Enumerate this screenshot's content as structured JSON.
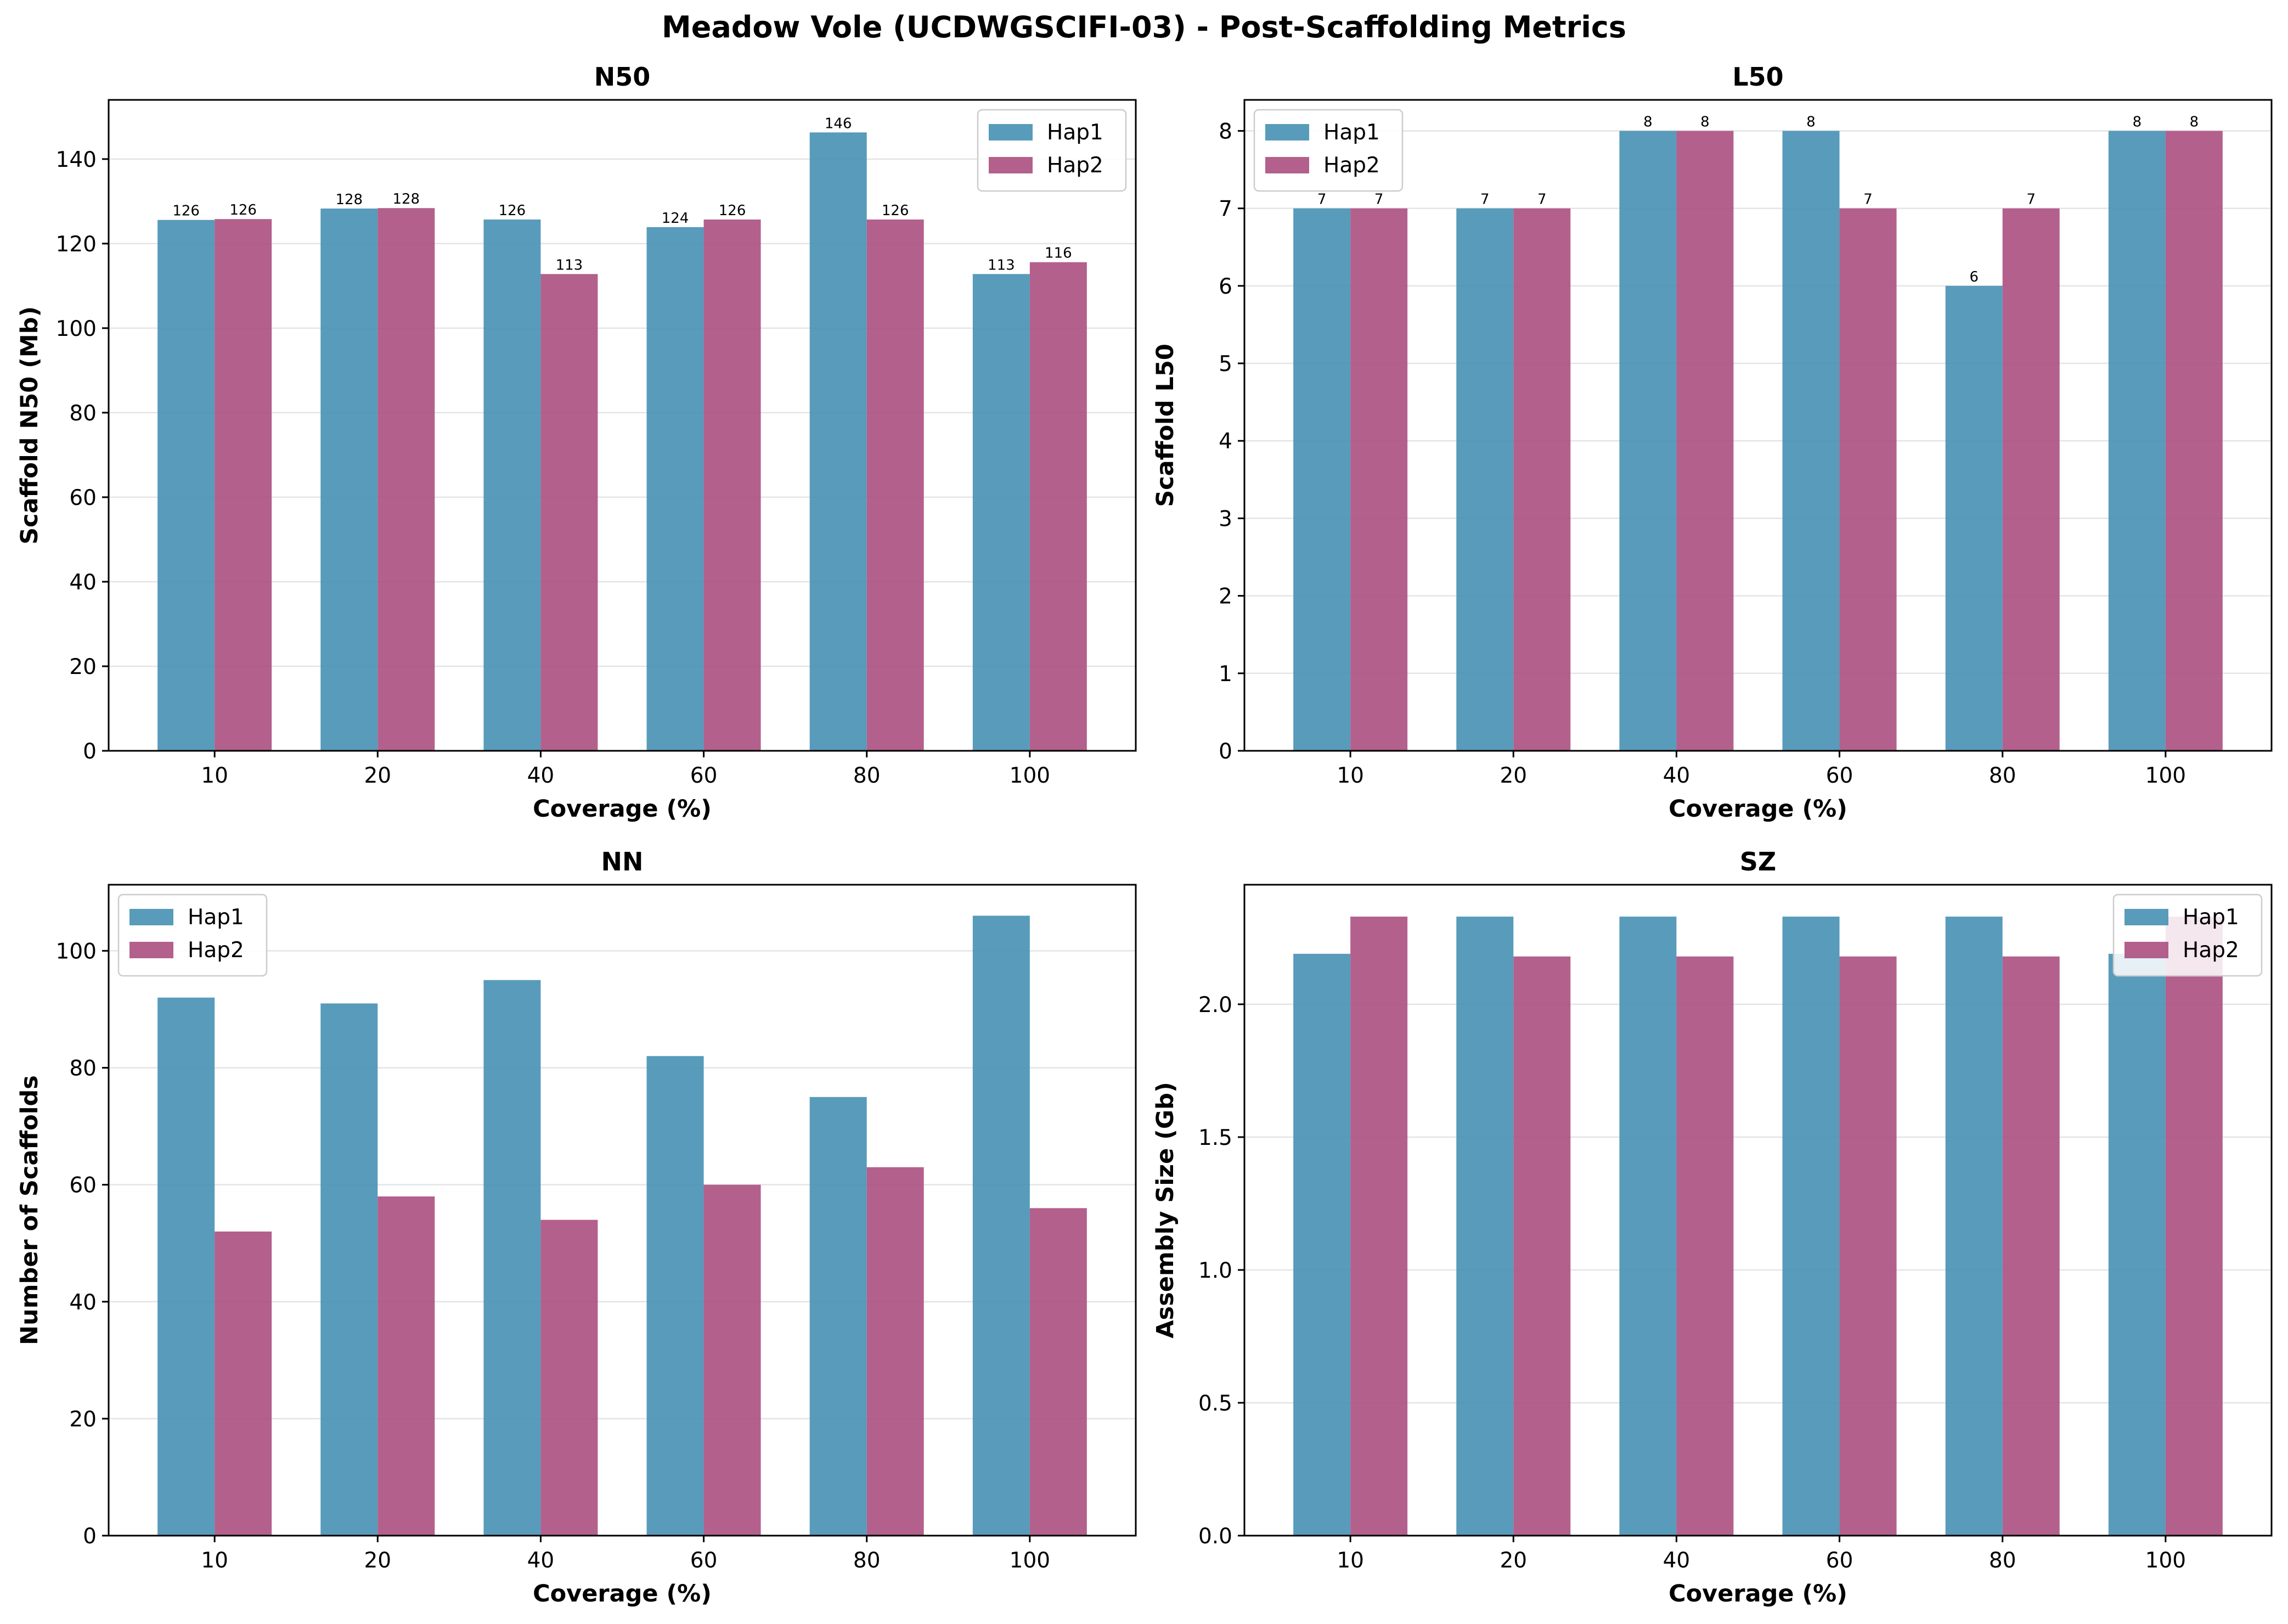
{
  "suptitle": "Meadow Vole (UCDWGSCIFI-03) - Post-Scaffolding Metrics",
  "colors": {
    "hap1": "#4a93b5",
    "hap2": "#ad5283"
  },
  "chart_data": [
    {
      "type": "bar",
      "title": "N50",
      "xlabel": "Coverage (%)",
      "ylabel": "Scaffold N50 (Mb)",
      "categories": [
        "10",
        "20",
        "40",
        "60",
        "80",
        "100"
      ],
      "ylim": [
        0,
        154
      ],
      "yticks": [
        "0",
        "20",
        "40",
        "60",
        "80",
        "100",
        "120",
        "140"
      ],
      "ytick_values": [
        0,
        20,
        40,
        60,
        80,
        100,
        120,
        140
      ],
      "legend": "top-right",
      "grid": "y",
      "series": [
        {
          "name": "Hap1",
          "values": [
            125.6,
            128.3,
            125.7,
            123.9,
            146.3,
            112.8
          ],
          "labels": [
            "126",
            "128",
            "126",
            "124",
            "146",
            "113"
          ]
        },
        {
          "name": "Hap2",
          "values": [
            125.8,
            128.4,
            112.8,
            125.7,
            125.7,
            115.6
          ],
          "labels": [
            "126",
            "128",
            "113",
            "126",
            "126",
            "116"
          ]
        }
      ]
    },
    {
      "type": "bar",
      "title": "L50",
      "xlabel": "Coverage (%)",
      "ylabel": "Scaffold L50",
      "categories": [
        "10",
        "20",
        "40",
        "60",
        "80",
        "100"
      ],
      "ylim": [
        0,
        8.4
      ],
      "yticks": [
        "0",
        "1",
        "2",
        "3",
        "4",
        "5",
        "6",
        "7",
        "8"
      ],
      "ytick_values": [
        0,
        1,
        2,
        3,
        4,
        5,
        6,
        7,
        8
      ],
      "legend": "top-left",
      "grid": "y",
      "series": [
        {
          "name": "Hap1",
          "values": [
            7,
            7,
            8,
            8,
            6,
            8
          ],
          "labels": [
            "7",
            "7",
            "8",
            "8",
            "6",
            "8"
          ]
        },
        {
          "name": "Hap2",
          "values": [
            7,
            7,
            8,
            7,
            7,
            8
          ],
          "labels": [
            "7",
            "7",
            "8",
            "7",
            "7",
            "8"
          ]
        }
      ]
    },
    {
      "type": "bar",
      "title": "NN",
      "xlabel": "Coverage (%)",
      "ylabel": "Number of Scaffolds",
      "categories": [
        "10",
        "20",
        "40",
        "60",
        "80",
        "100"
      ],
      "ylim": [
        0,
        111.3
      ],
      "yticks": [
        "0",
        "20",
        "40",
        "60",
        "80",
        "100"
      ],
      "ytick_values": [
        0,
        20,
        40,
        60,
        80,
        100
      ],
      "legend": "top-left",
      "grid": "y",
      "series": [
        {
          "name": "Hap1",
          "values": [
            92,
            91,
            95,
            82,
            75,
            106
          ]
        },
        {
          "name": "Hap2",
          "values": [
            52,
            58,
            54,
            60,
            63,
            56
          ]
        }
      ]
    },
    {
      "type": "bar",
      "title": "SZ",
      "xlabel": "Coverage (%)",
      "ylabel": "Assembly Size (Gb)",
      "categories": [
        "10",
        "20",
        "40",
        "60",
        "80",
        "100"
      ],
      "ylim": [
        0,
        2.45
      ],
      "yticks": [
        "0.0",
        "0.5",
        "1.0",
        "1.5",
        "2.0"
      ],
      "ytick_values": [
        0,
        0.5,
        1.0,
        1.5,
        2.0
      ],
      "legend": "top-right",
      "grid": "y",
      "series": [
        {
          "name": "Hap1",
          "values": [
            2.19,
            2.33,
            2.33,
            2.33,
            2.33,
            2.19
          ]
        },
        {
          "name": "Hap2",
          "values": [
            2.33,
            2.18,
            2.18,
            2.18,
            2.18,
            2.33
          ]
        }
      ]
    }
  ]
}
